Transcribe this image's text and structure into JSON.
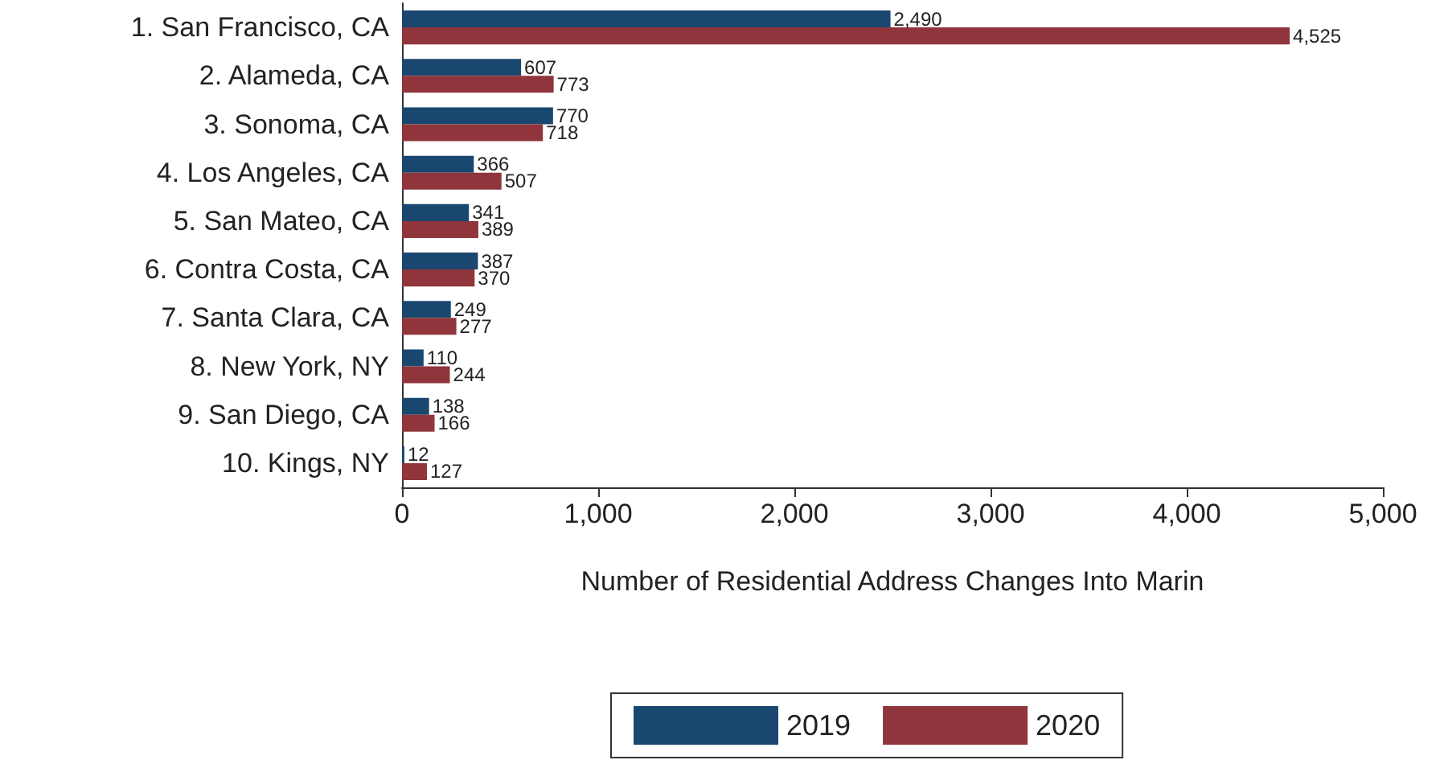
{
  "chart_data": {
    "type": "bar",
    "orientation": "horizontal",
    "xlabel": "Number of Residential Address Changes Into Marin",
    "categories": [
      "1. San Francisco, CA",
      "2. Alameda, CA",
      "3. Sonoma, CA",
      "4. Los Angeles, CA",
      "5. San Mateo, CA",
      "6. Contra Costa, CA",
      "7. Santa Clara, CA",
      "8. New York, NY",
      "9. San Diego, CA",
      "10. Kings, NY"
    ],
    "series": [
      {
        "name": "2019",
        "color": "#1a476f",
        "values": [
          2490,
          607,
          770,
          366,
          341,
          387,
          249,
          110,
          138,
          12
        ],
        "value_labels": [
          "2,490",
          "607",
          "770",
          "366",
          "341",
          "387",
          "249",
          "110",
          "138",
          "12"
        ]
      },
      {
        "name": "2020",
        "color": "#90353b",
        "values": [
          4525,
          773,
          718,
          507,
          389,
          370,
          277,
          244,
          166,
          127
        ],
        "value_labels": [
          "4,525",
          "773",
          "718",
          "507",
          "389",
          "370",
          "277",
          "244",
          "166",
          "127"
        ]
      }
    ],
    "xlim": [
      0,
      5000
    ],
    "xticks": [
      {
        "value": 0,
        "label": "0"
      },
      {
        "value": 1000,
        "label": "1,000"
      },
      {
        "value": 2000,
        "label": "2,000"
      },
      {
        "value": 3000,
        "label": "3,000"
      },
      {
        "value": 4000,
        "label": "4,000"
      },
      {
        "value": 5000,
        "label": "5,000"
      }
    ],
    "grid": false,
    "legend": "bottom"
  }
}
